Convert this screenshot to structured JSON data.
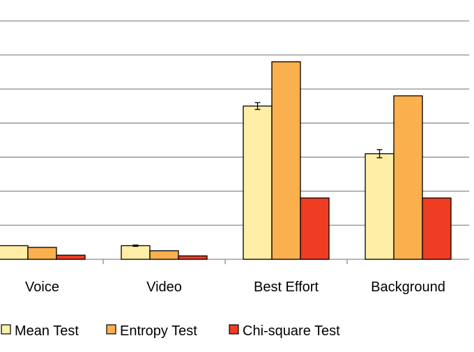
{
  "chart_data": {
    "type": "bar",
    "categories": [
      "Voice",
      "Video",
      "Best Effort",
      "Background"
    ],
    "series": [
      {
        "name": "Mean Test",
        "color": "#FFEFA6",
        "values": [
          0.4,
          0.4,
          4.5,
          3.1
        ],
        "error": [
          0,
          0.02,
          0.1,
          0.12
        ]
      },
      {
        "name": "Entropy Test",
        "color": "#FBB04E",
        "values": [
          0.35,
          0.25,
          5.8,
          4.8
        ]
      },
      {
        "name": "Chi-square Test",
        "color": "#EE3D23",
        "values": [
          0.12,
          0.1,
          1.8,
          1.8
        ]
      }
    ],
    "ylim": [
      0,
      7
    ],
    "grid": true,
    "legend_position": "bottom",
    "title": "",
    "xlabel": "",
    "ylabel": ""
  }
}
